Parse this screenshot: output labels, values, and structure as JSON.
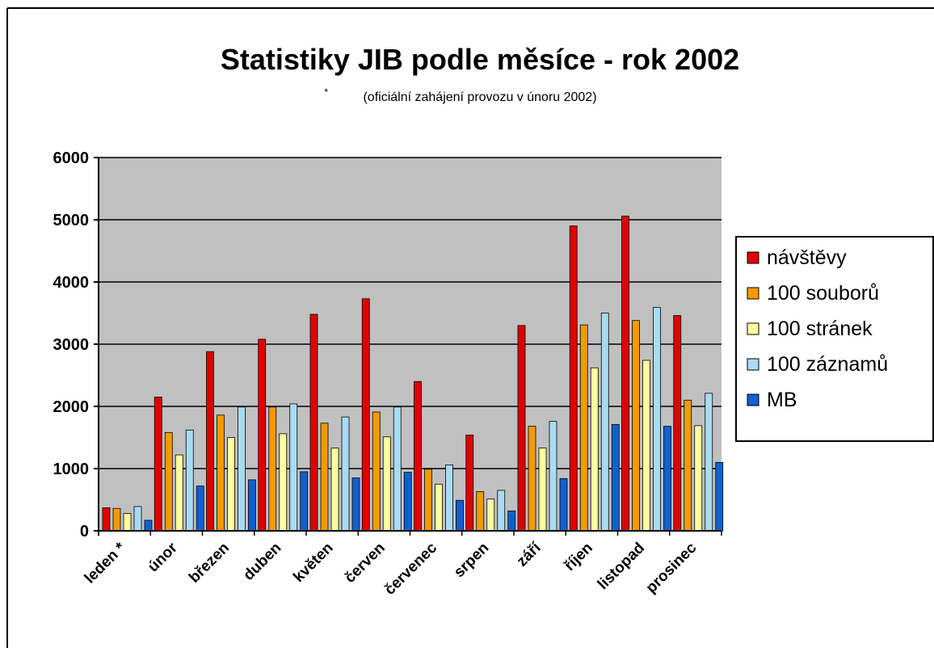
{
  "chart_data": {
    "type": "bar",
    "title": "Statistiky JIB podle měsíce - rok 2002",
    "subtitle_mark": "*",
    "subtitle": "(oficiální zahájení provozu v únoru 2002)",
    "xlabel": "",
    "ylabel": "",
    "ylim": [
      0,
      6000
    ],
    "yticks": [
      0,
      1000,
      2000,
      3000,
      4000,
      5000,
      6000
    ],
    "grid": true,
    "legend_position": "right",
    "categories": [
      "leden *",
      "únor",
      "březen",
      "duben",
      "květen",
      "červen",
      "červenec",
      "srpen",
      "září",
      "říjen",
      "listopad",
      "prosinec"
    ],
    "series": [
      {
        "name": "návštěvy",
        "color": "#e00000",
        "values": [
          370,
          2150,
          2880,
          3080,
          3480,
          3730,
          2400,
          1540,
          3300,
          4900,
          5060,
          3460
        ]
      },
      {
        "name": "100 souborů",
        "color": "#f59a00",
        "values": [
          360,
          1580,
          1860,
          1990,
          1730,
          1910,
          990,
          630,
          1680,
          3310,
          3380,
          2100
        ]
      },
      {
        "name": "100 stránek",
        "color": "#ffffa0",
        "values": [
          280,
          1220,
          1500,
          1560,
          1330,
          1510,
          750,
          510,
          1330,
          2620,
          2740,
          1690
        ]
      },
      {
        "name": "100 záznamů",
        "color": "#a8dcf4",
        "values": [
          390,
          1620,
          1990,
          2040,
          1830,
          1990,
          1060,
          650,
          1760,
          3500,
          3590,
          2210
        ]
      },
      {
        "name": "MB",
        "color": "#1060d0",
        "values": [
          170,
          720,
          820,
          950,
          850,
          940,
          490,
          320,
          840,
          1710,
          1680,
          1100
        ]
      }
    ]
  }
}
